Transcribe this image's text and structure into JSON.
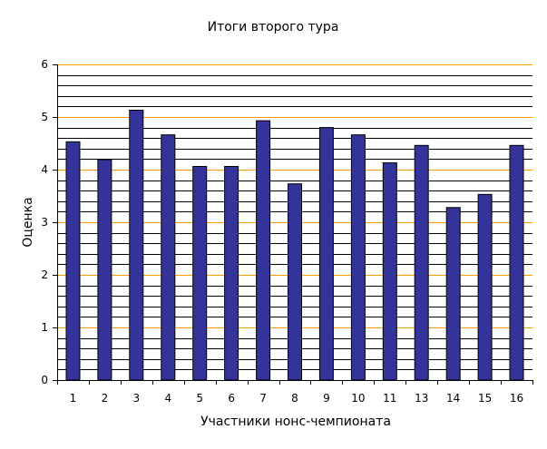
{
  "chart_data": {
    "type": "bar",
    "title": "Итоги второго тура",
    "xlabel": "Участники нонс-чемпионата",
    "ylabel": "Оценка",
    "categories": [
      "1",
      "2",
      "3",
      "4",
      "5",
      "6",
      "7",
      "8",
      "9",
      "10",
      "11",
      "13",
      "14",
      "15",
      "16"
    ],
    "values": [
      4.53,
      4.19,
      5.13,
      4.66,
      4.06,
      4.06,
      4.93,
      3.73,
      4.8,
      4.66,
      4.13,
      4.46,
      3.28,
      3.53,
      4.46
    ],
    "ylim": [
      0,
      6
    ],
    "yticks": [
      "0",
      "1",
      "2",
      "3",
      "4",
      "5",
      "6"
    ],
    "grid": "horizontal major and minor lines",
    "legend": "none",
    "colors": {
      "bar_fill": "#333399",
      "bar_stroke": "#000000",
      "minor_grid": "#000000",
      "major_grid": "#ff9900",
      "axis": "#000000"
    }
  }
}
